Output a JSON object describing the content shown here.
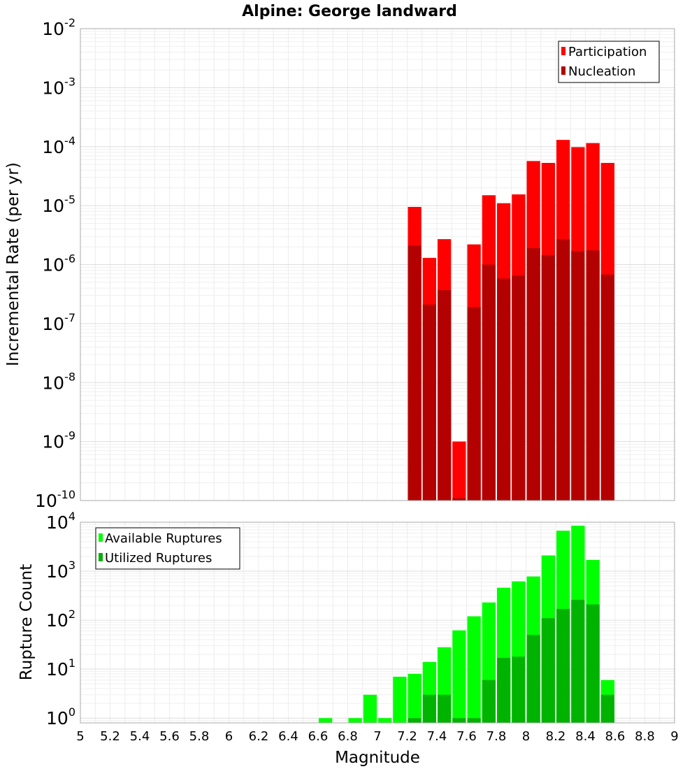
{
  "chart_data": {
    "type": "bar",
    "title": "Alpine: George landward",
    "xlabel": "Magnitude",
    "x_ticks": [
      "5",
      "5.2",
      "5.4",
      "5.6",
      "5.8",
      "6",
      "6.2",
      "6.4",
      "6.6",
      "6.8",
      "7",
      "7.2",
      "7.4",
      "7.6",
      "7.8",
      "8",
      "8.2",
      "8.4",
      "8.6",
      "8.8",
      "9"
    ],
    "xlim": [
      5,
      9
    ],
    "bin_width": 0.1,
    "panels": [
      {
        "ylabel": "Incremental Rate (per yr)",
        "scale": "log",
        "ylim": [
          1e-10,
          0.01
        ],
        "y_ticks": [
          {
            "base": "10",
            "exp": "-10"
          },
          {
            "base": "10",
            "exp": "-9"
          },
          {
            "base": "10",
            "exp": "-8"
          },
          {
            "base": "10",
            "exp": "-7"
          },
          {
            "base": "10",
            "exp": "-6"
          },
          {
            "base": "10",
            "exp": "-5"
          },
          {
            "base": "10",
            "exp": "-4"
          },
          {
            "base": "10",
            "exp": "-3"
          },
          {
            "base": "10",
            "exp": "-2"
          }
        ],
        "legend_position": "top-right",
        "grid": true,
        "series": [
          {
            "name": "Participation",
            "color": "#ff0000",
            "x": [
              7.25,
              7.35,
              7.45,
              7.55,
              7.65,
              7.75,
              7.85,
              7.95,
              8.05,
              8.15,
              8.25,
              8.35,
              8.45,
              8.55
            ],
            "values": [
              9.5e-06,
              1.3e-06,
              2.7e-06,
              1e-09,
              2.2e-06,
              1.5e-05,
              1.1e-05,
              1.55e-05,
              5.7e-05,
              5.3e-05,
              0.00013,
              9.8e-05,
              0.000115,
              5.3e-05
            ]
          },
          {
            "name": "Nucleation",
            "color": "#b30000",
            "x": [
              7.25,
              7.35,
              7.45,
              7.55,
              7.65,
              7.75,
              7.85,
              7.95,
              8.05,
              8.15,
              8.25,
              8.35,
              8.45,
              8.55
            ],
            "values": [
              2.1e-06,
              2.1e-07,
              3.7e-07,
              1.1e-10,
              1.9e-07,
              1e-06,
              5.8e-07,
              6.5e-07,
              1.9e-06,
              1.45e-06,
              2.7e-06,
              1.7e-06,
              1.75e-06,
              6.8e-07
            ]
          }
        ]
      },
      {
        "ylabel": "Rupture Count",
        "scale": "log",
        "ylim": [
          0.8,
          10000
        ],
        "y_ticks": [
          {
            "base": "10",
            "exp": "0"
          },
          {
            "base": "10",
            "exp": "1"
          },
          {
            "base": "10",
            "exp": "2"
          },
          {
            "base": "10",
            "exp": "3"
          },
          {
            "base": "10",
            "exp": "4"
          }
        ],
        "legend_position": "top-left",
        "grid": true,
        "series": [
          {
            "name": "Available Ruptures",
            "color": "#00ff00",
            "x": [
              6.65,
              6.85,
              6.95,
              7.05,
              7.15,
              7.25,
              7.35,
              7.45,
              7.55,
              7.65,
              7.75,
              7.85,
              7.95,
              8.05,
              8.15,
              8.25,
              8.35,
              8.45,
              8.55
            ],
            "values": [
              1,
              1,
              3,
              1,
              7,
              8,
              14,
              28,
              62,
              120,
              230,
              460,
              620,
              780,
              2100,
              6700,
              8500,
              1700,
              6
            ]
          },
          {
            "name": "Utilized Ruptures",
            "color": "#00b300",
            "x": [
              7.25,
              7.35,
              7.45,
              7.55,
              7.65,
              7.75,
              7.85,
              7.95,
              8.05,
              8.15,
              8.25,
              8.35,
              8.45,
              8.55
            ],
            "values": [
              1,
              3,
              3,
              1,
              1,
              6,
              17,
              18,
              50,
              110,
              170,
              260,
              210,
              3
            ]
          }
        ]
      }
    ]
  }
}
